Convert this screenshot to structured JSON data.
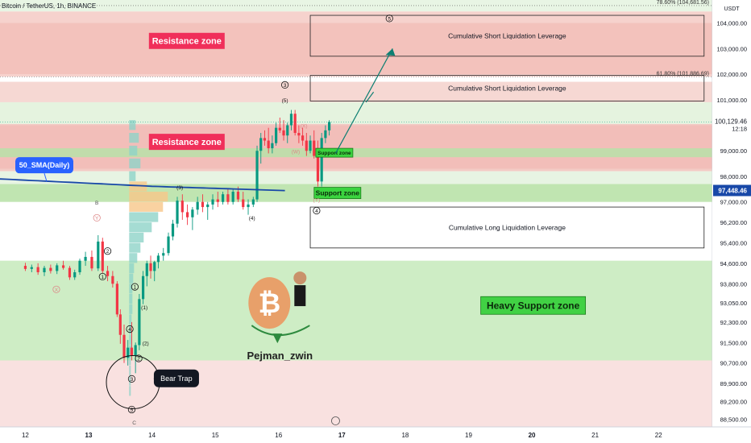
{
  "header": {
    "ticker": "Bitcoin / TetherUS, 1h, BINANCE"
  },
  "chart_data": {
    "type": "candlestick",
    "currency": "USDT",
    "y_range": [
      88200,
      104900
    ],
    "x_range": [
      11.6,
      22.85
    ],
    "price_ticks": [
      "104,000.00",
      "103,000.00",
      "102,000.00",
      "101,000.00",
      "99,000.00",
      "98,000.00",
      "97,000.00",
      "96,200.00",
      "95,400.00",
      "94,600.00",
      "93,800.00",
      "93,050.00",
      "92,300.00",
      "91,500.00",
      "90,700.00",
      "89,900.00",
      "89,200.00",
      "88,500.00"
    ],
    "price_tick_values": [
      104000,
      103000,
      102000,
      101000,
      99000,
      98000,
      97000,
      96200,
      95400,
      94600,
      93800,
      93050,
      92300,
      91500,
      90700,
      89900,
      89200,
      88500
    ],
    "x_ticks": [
      "12",
      "13",
      "14",
      "15",
      "16",
      "17",
      "18",
      "19",
      "20",
      "21",
      "22"
    ],
    "x_tick_values": [
      12,
      13,
      14,
      15,
      16,
      17,
      18,
      19,
      20,
      21,
      22
    ],
    "current_price": {
      "label": "100,129.46",
      "value": 100129.46,
      "countdown": "12:18"
    },
    "sma_price": {
      "label": "97,448.46",
      "value": 97448.46
    },
    "fib_levels": [
      {
        "label": "78.60% (104,681.56)",
        "value": 104681.56
      },
      {
        "label": "61.80% (101,886.69)",
        "value": 101886.69
      }
    ],
    "zones": [
      {
        "label": "Resistance zone",
        "kind": "resistance",
        "from": 102000,
        "to": 104000
      },
      {
        "label": "Resistance zone",
        "kind": "resistance",
        "from": 98300,
        "to": 100000
      },
      {
        "label": "Support zone",
        "kind": "support",
        "from": 98750,
        "to": 99100
      },
      {
        "label": "Support zone",
        "kind": "support",
        "from": 97000,
        "to": 97700
      },
      {
        "label": "Heavy Support zone",
        "kind": "heavy-support",
        "from": 90800,
        "to": 94700
      }
    ],
    "liquidation_boxes": [
      {
        "label": "Cumulative Short Liquidation Leverage",
        "from": 102700,
        "to": 104300
      },
      {
        "label": "Cumulative Short Liquidation Leverage",
        "from": 100950,
        "to": 101950
      },
      {
        "label": "Cumulative Long Liquidation Leverage",
        "from": 95200,
        "to": 96800
      }
    ],
    "sma_label": "50_SMA(Daily)",
    "annotations": {
      "bear_trap": "Bear Trap",
      "author": "Pejman_zwin",
      "waves": [
        "B",
        "Y",
        "C",
        "X",
        "1",
        "2",
        "3",
        "4",
        "5",
        "(1)",
        "(2)",
        "(3)",
        "(4)",
        "(5)",
        "(W)",
        "(X)",
        "(Y)"
      ]
    },
    "candles": [
      [
        12.0,
        94500,
        94620,
        94300,
        94380
      ],
      [
        12.1,
        94380,
        94550,
        94250,
        94450
      ],
      [
        12.2,
        94450,
        94600,
        94150,
        94250
      ],
      [
        12.3,
        94250,
        94500,
        94100,
        94420
      ],
      [
        12.4,
        94420,
        94550,
        94200,
        94300
      ],
      [
        12.5,
        94300,
        94600,
        94180,
        94520
      ],
      [
        12.6,
        94520,
        94700,
        94350,
        94420
      ],
      [
        12.7,
        94420,
        94500,
        93950,
        94050
      ],
      [
        12.78,
        94050,
        94350,
        93950,
        94250
      ],
      [
        12.86,
        94250,
        94780,
        94150,
        94700
      ],
      [
        12.95,
        94700,
        95050,
        94500,
        94850
      ],
      [
        13.05,
        94850,
        95100,
        94300,
        94400
      ],
      [
        13.15,
        94400,
        95700,
        94300,
        95450
      ],
      [
        13.22,
        95450,
        95600,
        94200,
        94300
      ],
      [
        13.3,
        94300,
        94500,
        93900,
        94100
      ],
      [
        13.38,
        94100,
        94300,
        93650,
        93800
      ],
      [
        13.45,
        93800,
        93900,
        92500,
        92600
      ],
      [
        13.5,
        92600,
        92800,
        91450,
        91800
      ],
      [
        13.56,
        91800,
        92200,
        90700,
        90900
      ],
      [
        13.62,
        90900,
        91600,
        90600,
        91300
      ],
      [
        13.68,
        91300,
        92300,
        90800,
        91000
      ],
      [
        13.74,
        91000,
        91500,
        90300,
        91400
      ],
      [
        13.8,
        91400,
        93400,
        91200,
        93200
      ],
      [
        13.86,
        93200,
        94300,
        93000,
        94100
      ],
      [
        13.92,
        94100,
        94700,
        93700,
        94600
      ],
      [
        13.98,
        94600,
        94900,
        94000,
        94300
      ],
      [
        14.04,
        94300,
        94700,
        93900,
        94650
      ],
      [
        14.1,
        94650,
        95000,
        94400,
        94900
      ],
      [
        14.18,
        94900,
        95200,
        94700,
        95000
      ],
      [
        14.26,
        95000,
        95800,
        94900,
        95650
      ],
      [
        14.33,
        95650,
        96300,
        95500,
        96150
      ],
      [
        14.4,
        96150,
        97200,
        96000,
        97050
      ],
      [
        14.48,
        97050,
        97300,
        96300,
        96600
      ],
      [
        14.56,
        96600,
        96900,
        96100,
        96400
      ],
      [
        14.64,
        96400,
        96800,
        95900,
        96700
      ],
      [
        14.72,
        96700,
        97200,
        96500,
        97000
      ],
      [
        14.8,
        97000,
        97300,
        96600,
        96800
      ],
      [
        14.88,
        96800,
        97000,
        96300,
        96900
      ],
      [
        14.96,
        96900,
        97300,
        96700,
        97100
      ],
      [
        15.04,
        97100,
        97400,
        96800,
        97000
      ],
      [
        15.12,
        97000,
        97400,
        96900,
        97300
      ],
      [
        15.2,
        97300,
        97500,
        96900,
        97000
      ],
      [
        15.28,
        97000,
        97500,
        96900,
        97400
      ],
      [
        15.36,
        97400,
        97600,
        97000,
        97100
      ],
      [
        15.44,
        97100,
        97400,
        96700,
        96800
      ],
      [
        15.52,
        96800,
        97100,
        96500,
        96900
      ],
      [
        15.6,
        96900,
        97200,
        96800,
        97100
      ],
      [
        15.66,
        97100,
        99200,
        97000,
        99000
      ],
      [
        15.72,
        99000,
        99700,
        98500,
        99500
      ],
      [
        15.78,
        99500,
        99800,
        99200,
        99400
      ],
      [
        15.84,
        99400,
        99900,
        98900,
        99100
      ],
      [
        15.9,
        99100,
        99600,
        98900,
        99300
      ],
      [
        15.96,
        99300,
        100100,
        99200,
        99900
      ],
      [
        16.02,
        99900,
        100300,
        99700,
        99800
      ],
      [
        16.08,
        99800,
        100200,
        99400,
        99600
      ],
      [
        16.14,
        99600,
        100100,
        99300,
        100000
      ],
      [
        16.2,
        100000,
        100600,
        99800,
        100450
      ],
      [
        16.26,
        100450,
        100600,
        99600,
        99700
      ],
      [
        16.32,
        99700,
        100000,
        99300,
        99600
      ],
      [
        16.38,
        99600,
        99900,
        99200,
        99400
      ],
      [
        16.44,
        99400,
        99700,
        98800,
        99000
      ],
      [
        16.5,
        99000,
        99600,
        98900,
        99400
      ],
      [
        16.56,
        99400,
        99800,
        98700,
        98800
      ],
      [
        16.62,
        98800,
        99400,
        97600,
        97800
      ],
      [
        16.68,
        97800,
        99700,
        97600,
        99500
      ],
      [
        16.74,
        99500,
        100000,
        99300,
        99800
      ],
      [
        16.8,
        99800,
        100200,
        99600,
        100130
      ]
    ]
  }
}
